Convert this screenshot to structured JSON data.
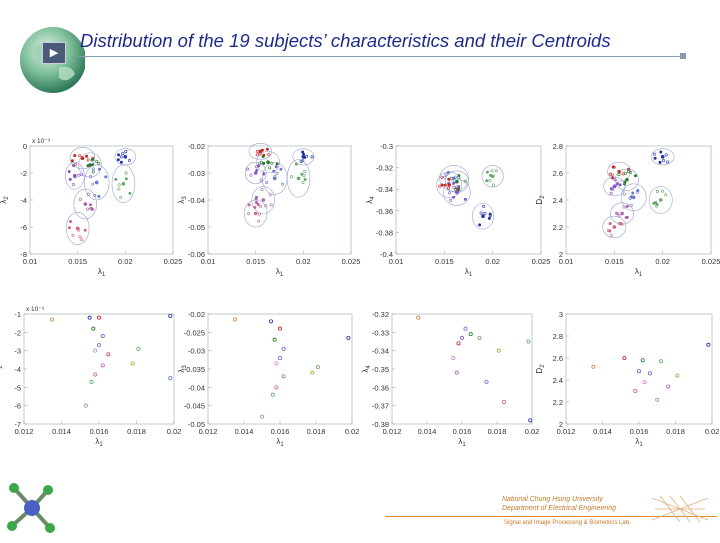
{
  "slide": {
    "title": "Distribution of the 19 subjects’ characteristics and their Centroids",
    "play_symbol": "▶",
    "footer": {
      "line1": "National Chung Hsing University",
      "line2": "Department of Electrical Engineering",
      "line3": "Signal and Image Processing & Biometrics Lab."
    }
  },
  "chart_data": [
    {
      "type": "scatter",
      "position": "top-1",
      "xlabel": "λ1",
      "ylabel": "λ2",
      "ymultiplier": "x 10⁻³",
      "xlim": [
        0.01,
        0.025
      ],
      "ylim": [
        -8,
        0
      ],
      "xticks": [
        "0.01",
        "0.015",
        "0.02",
        "0.025"
      ],
      "yticks": [
        "0",
        "-2",
        "-4",
        "-6",
        "-8"
      ],
      "clusters": [
        {
          "cx": 0.0155,
          "cy": -0.9,
          "rx": 0.0013,
          "ry": 0.8,
          "color": "#cc2222"
        },
        {
          "cx": 0.0163,
          "cy": -1.4,
          "rx": 0.0012,
          "ry": 0.9,
          "color": "#2a7a2a"
        },
        {
          "cx": 0.02,
          "cy": -0.8,
          "rx": 0.0011,
          "ry": 0.6,
          "color": "#2233aa"
        },
        {
          "cx": 0.0147,
          "cy": -2.2,
          "rx": 0.001,
          "ry": 1.0,
          "color": "#8855cc"
        },
        {
          "cx": 0.017,
          "cy": -2.7,
          "rx": 0.0013,
          "ry": 1.3,
          "color": "#6677cc"
        },
        {
          "cx": 0.0198,
          "cy": -2.8,
          "rx": 0.0012,
          "ry": 1.4,
          "color": "#66aa66"
        },
        {
          "cx": 0.0158,
          "cy": -4.3,
          "rx": 0.0012,
          "ry": 1.1,
          "color": "#aa66aa"
        },
        {
          "cx": 0.015,
          "cy": -6.1,
          "rx": 0.0012,
          "ry": 1.2,
          "color": "#cc6688"
        }
      ]
    },
    {
      "type": "scatter",
      "position": "top-2",
      "xlabel": "λ1",
      "ylabel": "λ3",
      "xlim": [
        0.01,
        0.025
      ],
      "ylim": [
        -0.06,
        -0.02
      ],
      "xticks": [
        "0.01",
        "0.015",
        "0.02",
        "0.025"
      ],
      "yticks": [
        "-0.02",
        "-0.03",
        "-0.04",
        "-0.05",
        "-0.06"
      ],
      "clusters": [
        {
          "cx": 0.0155,
          "cy": -0.022,
          "rx": 0.0012,
          "ry": 0.003,
          "color": "#cc2222"
        },
        {
          "cx": 0.0163,
          "cy": -0.026,
          "rx": 0.0012,
          "ry": 0.004,
          "color": "#2a7a2a"
        },
        {
          "cx": 0.02,
          "cy": -0.024,
          "rx": 0.0011,
          "ry": 0.003,
          "color": "#2233aa"
        },
        {
          "cx": 0.015,
          "cy": -0.03,
          "rx": 0.0011,
          "ry": 0.004,
          "color": "#8855cc"
        },
        {
          "cx": 0.017,
          "cy": -0.032,
          "rx": 0.0013,
          "ry": 0.006,
          "color": "#6677cc"
        },
        {
          "cx": 0.0195,
          "cy": -0.032,
          "rx": 0.0012,
          "ry": 0.007,
          "color": "#66aa66"
        },
        {
          "cx": 0.0158,
          "cy": -0.04,
          "rx": 0.0012,
          "ry": 0.005,
          "color": "#aa66aa"
        },
        {
          "cx": 0.015,
          "cy": -0.045,
          "rx": 0.0012,
          "ry": 0.005,
          "color": "#cc6688"
        }
      ]
    },
    {
      "type": "scatter",
      "position": "top-3",
      "xlabel": "λ1",
      "ylabel": "λ4",
      "xlim": [
        0.01,
        0.025
      ],
      "ylim": [
        -0.4,
        -0.3
      ],
      "xticks": [
        "0.01",
        "0.015",
        "0.02",
        "0.025"
      ],
      "yticks": [
        "-0.3",
        "-0.32",
        "-0.34",
        "-0.36",
        "-0.38",
        "-0.4"
      ],
      "clusters": [
        {
          "cx": 0.016,
          "cy": -0.33,
          "rx": 0.0015,
          "ry": 0.012,
          "color": "#6677cc"
        },
        {
          "cx": 0.0163,
          "cy": -0.333,
          "rx": 0.0012,
          "ry": 0.01,
          "color": "#2a7a2a"
        },
        {
          "cx": 0.0155,
          "cy": -0.336,
          "rx": 0.0013,
          "ry": 0.012,
          "color": "#cc2222"
        },
        {
          "cx": 0.02,
          "cy": -0.328,
          "rx": 0.0011,
          "ry": 0.01,
          "color": "#66aa66"
        },
        {
          "cx": 0.0163,
          "cy": -0.343,
          "rx": 0.0014,
          "ry": 0.012,
          "color": "#8855cc"
        },
        {
          "cx": 0.019,
          "cy": -0.365,
          "rx": 0.0011,
          "ry": 0.012,
          "color": "#2233aa"
        }
      ]
    },
    {
      "type": "scatter",
      "position": "top-4",
      "xlabel": "λ1",
      "ylabel": "D2",
      "xlim": [
        0.01,
        0.025
      ],
      "ylim": [
        2,
        2.8
      ],
      "xticks": [
        "0.01",
        "0.015",
        "0.02",
        "0.025"
      ],
      "yticks": [
        "2.8",
        "2.6",
        "2.4",
        "2.2",
        "2"
      ],
      "clusters": [
        {
          "cx": 0.02,
          "cy": 2.72,
          "rx": 0.0012,
          "ry": 0.06,
          "color": "#2233aa"
        },
        {
          "cx": 0.0155,
          "cy": 2.61,
          "rx": 0.0012,
          "ry": 0.07,
          "color": "#cc2222"
        },
        {
          "cx": 0.0163,
          "cy": 2.55,
          "rx": 0.0012,
          "ry": 0.08,
          "color": "#2a7a2a"
        },
        {
          "cx": 0.015,
          "cy": 2.5,
          "rx": 0.0011,
          "ry": 0.07,
          "color": "#8855cc"
        },
        {
          "cx": 0.017,
          "cy": 2.42,
          "rx": 0.0013,
          "ry": 0.1,
          "color": "#6677cc"
        },
        {
          "cx": 0.0198,
          "cy": 2.4,
          "rx": 0.0012,
          "ry": 0.1,
          "color": "#66aa66"
        },
        {
          "cx": 0.0158,
          "cy": 2.3,
          "rx": 0.0012,
          "ry": 0.08,
          "color": "#aa66aa"
        },
        {
          "cx": 0.015,
          "cy": 2.2,
          "rx": 0.0012,
          "ry": 0.08,
          "color": "#cc6688"
        }
      ]
    },
    {
      "type": "scatter",
      "position": "bottom-1",
      "xlabel": "λ1",
      "ylabel": "λ2",
      "ymultiplier": "x 10⁻³",
      "xlim": [
        0.012,
        0.02
      ],
      "ylim": [
        -7,
        -1
      ],
      "xticks": [
        "0.012",
        "0.014",
        "0.016",
        "0.018",
        "0.02"
      ],
      "yticks": [
        "-1",
        "-2",
        "-3",
        "-4",
        "-5",
        "-6",
        "-7"
      ],
      "points": [
        {
          "x": 0.0135,
          "y": -1.3,
          "c": "#cc8844"
        },
        {
          "x": 0.0155,
          "y": -1.2,
          "c": "#2233aa"
        },
        {
          "x": 0.016,
          "y": -1.2,
          "c": "#cc2222"
        },
        {
          "x": 0.0198,
          "y": -1.1,
          "c": "#2233aa"
        },
        {
          "x": 0.0157,
          "y": -1.8,
          "c": "#2a7a2a"
        },
        {
          "x": 0.0162,
          "y": -2.2,
          "c": "#8855cc"
        },
        {
          "x": 0.016,
          "y": -2.7,
          "c": "#6677cc"
        },
        {
          "x": 0.0158,
          "y": -3.0,
          "c": "#cc88cc"
        },
        {
          "x": 0.0181,
          "y": -2.9,
          "c": "#66aa66"
        },
        {
          "x": 0.0178,
          "y": -3.7,
          "c": "#aaaa33"
        },
        {
          "x": 0.0162,
          "y": -3.8,
          "c": "#aa66aa"
        },
        {
          "x": 0.0158,
          "y": -4.3,
          "c": "#cc6688"
        },
        {
          "x": 0.0156,
          "y": -4.7,
          "c": "#66aa66"
        },
        {
          "x": 0.0198,
          "y": -4.5,
          "c": "#6677cc"
        },
        {
          "x": 0.0153,
          "y": -6.0,
          "c": "#8899cc"
        },
        {
          "x": 0.0165,
          "y": -3.2,
          "c": "#cc4444"
        }
      ]
    },
    {
      "type": "scatter",
      "position": "bottom-2",
      "xlabel": "λ1",
      "ylabel": "λ3",
      "xlim": [
        0.012,
        0.02
      ],
      "ylim": [
        -0.05,
        -0.02
      ],
      "xticks": [
        "0.012",
        "0.014",
        "0.016",
        "0.018",
        "0.02"
      ],
      "yticks": [
        "-0.02",
        "-0.025",
        "-0.03",
        "-0.035",
        "-0.04",
        "-0.045",
        "-0.05"
      ],
      "points": [
        {
          "x": 0.0135,
          "y": -0.0215,
          "c": "#cc8844"
        },
        {
          "x": 0.0155,
          "y": -0.022,
          "c": "#2233aa"
        },
        {
          "x": 0.016,
          "y": -0.024,
          "c": "#cc2222"
        },
        {
          "x": 0.0198,
          "y": -0.0265,
          "c": "#2233aa"
        },
        {
          "x": 0.0157,
          "y": -0.027,
          "c": "#2a7a2a"
        },
        {
          "x": 0.0162,
          "y": -0.0295,
          "c": "#8855cc"
        },
        {
          "x": 0.016,
          "y": -0.032,
          "c": "#6677cc"
        },
        {
          "x": 0.0158,
          "y": -0.0335,
          "c": "#cc88cc"
        },
        {
          "x": 0.0181,
          "y": -0.0345,
          "c": "#66aa66"
        },
        {
          "x": 0.0178,
          "y": -0.036,
          "c": "#aaaa33"
        },
        {
          "x": 0.0162,
          "y": -0.037,
          "c": "#aa66aa"
        },
        {
          "x": 0.0158,
          "y": -0.04,
          "c": "#cc6688"
        },
        {
          "x": 0.0156,
          "y": -0.042,
          "c": "#66aa66"
        },
        {
          "x": 0.015,
          "y": -0.048,
          "c": "#8899cc"
        }
      ]
    },
    {
      "type": "scatter",
      "position": "bottom-3",
      "xlabel": "λ1",
      "ylabel": "λ4",
      "xlim": [
        0.012,
        0.02
      ],
      "ylim": [
        -0.38,
        -0.32
      ],
      "xticks": [
        "0.012",
        "0.014",
        "0.016",
        "0.018",
        "0.02"
      ],
      "yticks": [
        "-0.32",
        "-0.33",
        "-0.34",
        "-0.35",
        "-0.36",
        "-0.37",
        "-0.38"
      ],
      "points": [
        {
          "x": 0.0135,
          "y": -0.322,
          "c": "#cc8844"
        },
        {
          "x": 0.0162,
          "y": -0.328,
          "c": "#6677cc"
        },
        {
          "x": 0.0165,
          "y": -0.331,
          "c": "#2a7a2a"
        },
        {
          "x": 0.016,
          "y": -0.333,
          "c": "#8855cc"
        },
        {
          "x": 0.0158,
          "y": -0.336,
          "c": "#cc2222"
        },
        {
          "x": 0.017,
          "y": -0.333,
          "c": "#66aa66"
        },
        {
          "x": 0.0198,
          "y": -0.335,
          "c": "#66aa66"
        },
        {
          "x": 0.0155,
          "y": -0.344,
          "c": "#cc88cc"
        },
        {
          "x": 0.0181,
          "y": -0.34,
          "c": "#aaaa33"
        },
        {
          "x": 0.0157,
          "y": -0.352,
          "c": "#aa66aa"
        },
        {
          "x": 0.0174,
          "y": -0.357,
          "c": "#6677cc"
        },
        {
          "x": 0.0184,
          "y": -0.368,
          "c": "#cc6688"
        },
        {
          "x": 0.0199,
          "y": -0.378,
          "c": "#2233aa"
        }
      ]
    },
    {
      "type": "scatter",
      "position": "bottom-4",
      "xlabel": "λ1",
      "ylabel": "D2",
      "xlim": [
        0.012,
        0.02
      ],
      "ylim": [
        2.0,
        3.0
      ],
      "xticks": [
        "0.012",
        "0.014",
        "0.016",
        "0.018",
        "0.02"
      ],
      "yticks": [
        "3",
        "2.8",
        "2.6",
        "2.4",
        "2.2",
        "2"
      ],
      "points": [
        {
          "x": 0.0198,
          "y": 2.72,
          "c": "#2233aa"
        },
        {
          "x": 0.0152,
          "y": 2.6,
          "c": "#cc2222"
        },
        {
          "x": 0.0162,
          "y": 2.58,
          "c": "#2a7a2a"
        },
        {
          "x": 0.0172,
          "y": 2.57,
          "c": "#66aa66"
        },
        {
          "x": 0.0135,
          "y": 2.52,
          "c": "#cc8844"
        },
        {
          "x": 0.016,
          "y": 2.48,
          "c": "#8855cc"
        },
        {
          "x": 0.0166,
          "y": 2.46,
          "c": "#6677cc"
        },
        {
          "x": 0.0181,
          "y": 2.44,
          "c": "#aaaa33"
        },
        {
          "x": 0.0163,
          "y": 2.38,
          "c": "#cc88cc"
        },
        {
          "x": 0.0176,
          "y": 2.34,
          "c": "#aa66aa"
        },
        {
          "x": 0.0158,
          "y": 2.3,
          "c": "#cc6688"
        },
        {
          "x": 0.017,
          "y": 2.22,
          "c": "#8899cc"
        }
      ]
    }
  ]
}
